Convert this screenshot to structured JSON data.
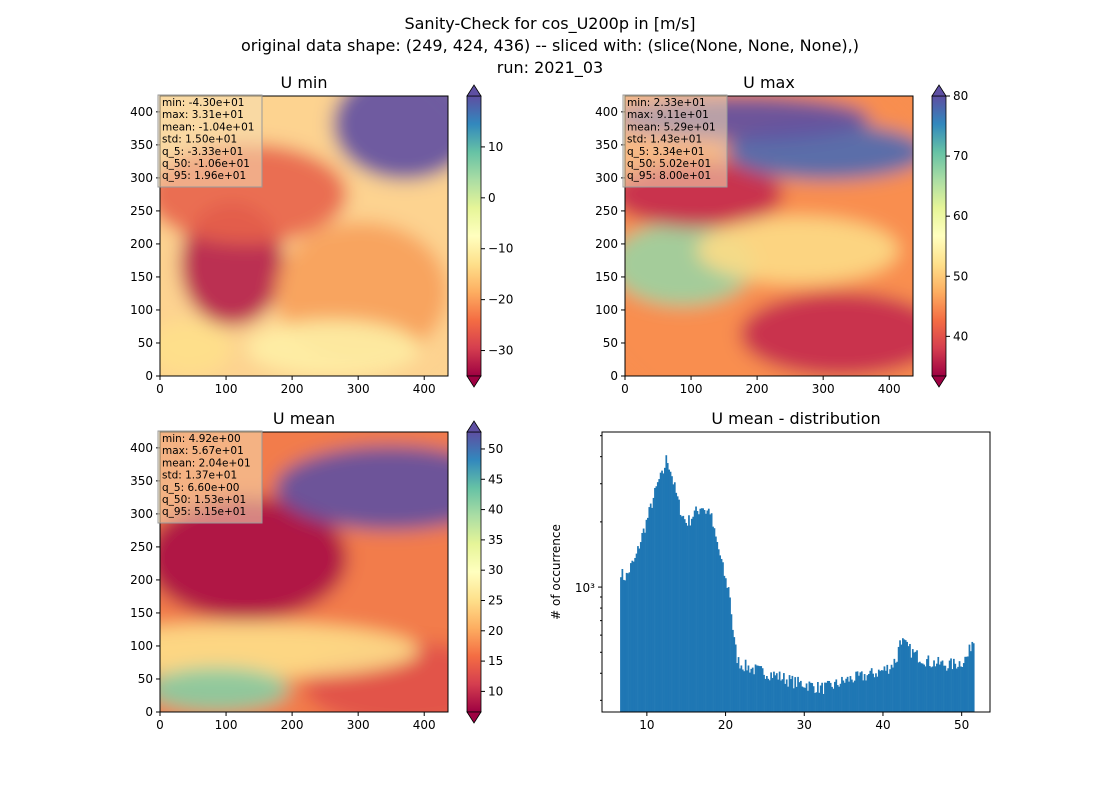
{
  "figure": {
    "title_lines": [
      "Sanity-Check for cos_U200p in [m/s]",
      "original data shape: (249, 424, 436) -- sliced with: (slice(None, None, None),)",
      "run: 2021_03"
    ]
  },
  "colormap": "Spectral",
  "chart_data": [
    {
      "type": "heatmap",
      "title": "U min",
      "xlim": [
        0,
        436
      ],
      "ylim": [
        0,
        424
      ],
      "xticks": [
        0,
        100,
        200,
        300,
        400
      ],
      "yticks": [
        0,
        50,
        100,
        150,
        200,
        250,
        300,
        350,
        400
      ],
      "colorbar": {
        "min": -35,
        "max": 20,
        "ticks": [
          -30,
          -20,
          -10,
          0,
          10
        ],
        "extend": "both"
      },
      "stats": [
        "min: -4.30e+01",
        "max: 3.31e+01",
        "mean: -1.04e+01",
        "std: 1.50e+01",
        "q_5: -3.33e+01",
        "q_50: -1.06e+01",
        "q_95: 1.96e+01"
      ]
    },
    {
      "type": "heatmap",
      "title": "U max",
      "xlim": [
        0,
        436
      ],
      "ylim": [
        0,
        424
      ],
      "xticks": [
        0,
        100,
        200,
        300,
        400
      ],
      "yticks": [
        0,
        50,
        100,
        150,
        200,
        250,
        300,
        350,
        400
      ],
      "colorbar": {
        "min": 33.4,
        "max": 80,
        "ticks": [
          40,
          50,
          60,
          70,
          80
        ],
        "extend": "both"
      },
      "stats": [
        "min: 2.33e+01",
        "max: 9.11e+01",
        "mean: 5.29e+01",
        "std: 1.43e+01",
        "q_5: 3.34e+01",
        "q_50: 5.02e+01",
        "q_95: 8.00e+01"
      ]
    },
    {
      "type": "heatmap",
      "title": "U mean",
      "xlim": [
        0,
        436
      ],
      "ylim": [
        0,
        424
      ],
      "xticks": [
        0,
        100,
        200,
        300,
        400
      ],
      "yticks": [
        0,
        50,
        100,
        150,
        200,
        250,
        300,
        350,
        400
      ],
      "colorbar": {
        "min": 6.6,
        "max": 52.8,
        "ticks": [
          10,
          15,
          20,
          25,
          30,
          35,
          40,
          45,
          50
        ],
        "extend": "both"
      },
      "stats": [
        "min: 4.92e+00",
        "max: 5.67e+01",
        "mean: 2.04e+01",
        "std: 1.37e+01",
        "q_5: 6.60e+00",
        "q_50: 1.53e+01",
        "q_95: 5.15e+01"
      ]
    },
    {
      "type": "bar",
      "title": "U mean - distribution",
      "ylabel": "# of occurrence",
      "yscale": "log",
      "xlim": [
        4.3,
        53.6
      ],
      "ylim": [
        265,
        5200
      ],
      "xticks": [
        10,
        20,
        30,
        40,
        50
      ],
      "yticks_major": [
        1000
      ],
      "ytick_labels": [
        "10³"
      ],
      "bar_color": "#1f77b4",
      "bins": {
        "start": 6.6,
        "width": 0.18
      },
      "anchors": [
        [
          6.6,
          1220
        ],
        [
          7.0,
          1110
        ],
        [
          7.5,
          1130
        ],
        [
          8.0,
          1260
        ],
        [
          8.5,
          1330
        ],
        [
          9.0,
          1550
        ],
        [
          9.5,
          1780
        ],
        [
          10.0,
          2030
        ],
        [
          10.5,
          2350
        ],
        [
          11.0,
          2700
        ],
        [
          11.5,
          3100
        ],
        [
          12.0,
          3300
        ],
        [
          12.5,
          3950
        ],
        [
          13.0,
          3500
        ],
        [
          13.5,
          2900
        ],
        [
          14.0,
          2450
        ],
        [
          14.5,
          2150
        ],
        [
          15.0,
          1990
        ],
        [
          15.5,
          2050
        ],
        [
          16.0,
          2200
        ],
        [
          16.5,
          2250
        ],
        [
          17.0,
          2400
        ],
        [
          17.5,
          2230
        ],
        [
          18.0,
          2280
        ],
        [
          18.5,
          1820
        ],
        [
          19.0,
          1550
        ],
        [
          19.5,
          1300
        ],
        [
          20.0,
          1070
        ],
        [
          20.5,
          960
        ],
        [
          21.0,
          590
        ],
        [
          21.5,
          460
        ],
        [
          22.0,
          440
        ],
        [
          23.0,
          425
        ],
        [
          24.0,
          412
        ],
        [
          25.0,
          405
        ],
        [
          26.0,
          395
        ],
        [
          27.0,
          385
        ],
        [
          28.0,
          372
        ],
        [
          29.0,
          362
        ],
        [
          30.0,
          358
        ],
        [
          31.0,
          350
        ],
        [
          32.0,
          342
        ],
        [
          33.0,
          345
        ],
        [
          34.0,
          355
        ],
        [
          35.0,
          368
        ],
        [
          36.0,
          378
        ],
        [
          37.0,
          383
        ],
        [
          38.0,
          392
        ],
        [
          39.0,
          402
        ],
        [
          40.0,
          412
        ],
        [
          41.0,
          432
        ],
        [
          41.8,
          470
        ],
        [
          42.2,
          590
        ],
        [
          42.5,
          560
        ],
        [
          43.0,
          530
        ],
        [
          44.0,
          490
        ],
        [
          45.0,
          470
        ],
        [
          46.0,
          450
        ],
        [
          47.0,
          445
        ],
        [
          48.0,
          438
        ],
        [
          49.0,
          440
        ],
        [
          50.0,
          452
        ],
        [
          50.8,
          480
        ],
        [
          51.3,
          565
        ]
      ]
    }
  ]
}
